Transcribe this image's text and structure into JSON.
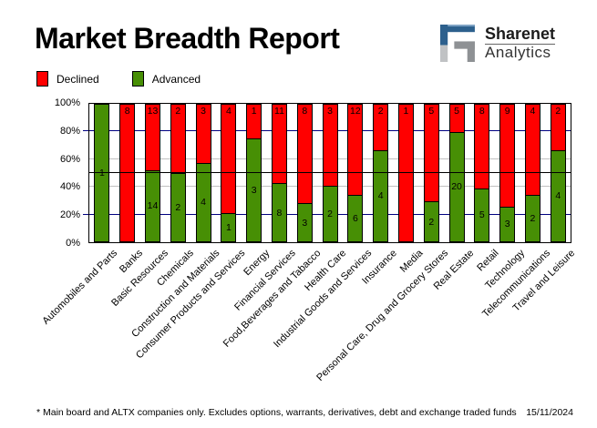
{
  "header": {
    "title": "Market Breadth Report",
    "brand": {
      "name": "Sharenet",
      "sub": "Analytics"
    }
  },
  "legend": {
    "items": [
      {
        "label": "Declined",
        "color": "#ff0000"
      },
      {
        "label": "Advanced",
        "color": "#478f05"
      }
    ]
  },
  "chart_data": {
    "type": "bar",
    "stacked": true,
    "normalized": "percent-of-total",
    "title": "Market Breadth Report",
    "xlabel": "",
    "ylabel": "",
    "ylim": [
      0,
      100
    ],
    "legend_position": "top-left",
    "categories": [
      "Automobiles and Parts",
      "Banks",
      "Basic Resources",
      "Chemicals",
      "Construction and Materials",
      "Consumer Products and Services",
      "Energy",
      "Financial Services",
      "Food,Beverages and Tabacco",
      "Health Care",
      "Industrial Goods and Services",
      "Insurance",
      "Media",
      "Personal Care, Drug and Grocery Stores",
      "Real Estate",
      "Retail",
      "Technology",
      "Telecommunications",
      "Travel and Leisure"
    ],
    "series": [
      {
        "name": "Declined",
        "color": "#ff0000",
        "values": [
          0,
          8,
          13,
          2,
          3,
          4,
          1,
          11,
          8,
          3,
          12,
          2,
          1,
          5,
          5,
          8,
          9,
          4,
          2
        ]
      },
      {
        "name": "Advanced",
        "color": "#478f05",
        "values": [
          1,
          0,
          14,
          2,
          4,
          1,
          3,
          8,
          3,
          2,
          6,
          4,
          0,
          2,
          20,
          5,
          3,
          2,
          4
        ]
      }
    ],
    "yticks": [
      {
        "label": "0%",
        "value": 0
      },
      {
        "label": "20%",
        "value": 20
      },
      {
        "label": "40%",
        "value": 40
      },
      {
        "label": "60%",
        "value": 60
      },
      {
        "label": "80%",
        "value": 80
      },
      {
        "label": "100%",
        "value": 100
      }
    ],
    "gridlines": [
      {
        "value": 20,
        "color": "#000080",
        "layer": "back"
      },
      {
        "value": 40,
        "color": "#c0c0c0",
        "layer": "back"
      },
      {
        "value": 50,
        "color": "#000000",
        "layer": "front"
      },
      {
        "value": 60,
        "color": "#c0c0c0",
        "layer": "back"
      },
      {
        "value": 80,
        "color": "#000080",
        "layer": "back"
      }
    ]
  },
  "footer": {
    "note": "* Main board and ALTX companies only. Excludes options, warrants, derivatives, debt and exchange traded funds",
    "date": "15/11/2024"
  }
}
